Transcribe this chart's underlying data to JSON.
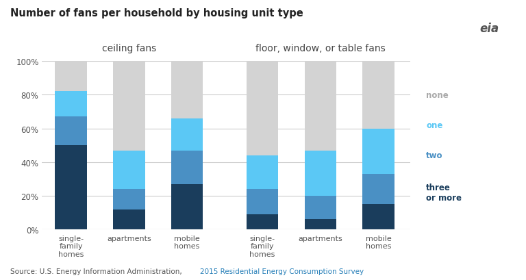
{
  "title": "Number of fans per household by housing unit type",
  "source_text": "Source: U.S. Energy Information Administration, ",
  "source_link": "2015 Residential Energy Consumption Survey",
  "group_labels": [
    "ceiling fans",
    "floor, window, or table fans"
  ],
  "categories_left": [
    "single-\nfamily\nhomes",
    "apartments",
    "mobile\nhomes"
  ],
  "categories_right": [
    "single-\nfamily\nhomes",
    "apartments",
    "mobile\nhomes"
  ],
  "legend_labels": [
    "none",
    "one",
    "two",
    "three\nor more"
  ],
  "colors": [
    "#d3d3d3",
    "#5bc8f5",
    "#4a90c4",
    "#1a3d5c"
  ],
  "data": {
    "three_or_more": [
      50,
      12,
      27,
      9,
      6,
      15
    ],
    "two": [
      17,
      12,
      20,
      15,
      14,
      18
    ],
    "one": [
      15,
      23,
      19,
      20,
      27,
      27
    ],
    "none": [
      18,
      53,
      34,
      56,
      53,
      40
    ]
  },
  "ylim": [
    0,
    100
  ],
  "yticks": [
    0,
    20,
    40,
    60,
    80,
    100
  ],
  "ytick_labels": [
    "0%",
    "20%",
    "40%",
    "60%",
    "80%",
    "100%"
  ],
  "bar_width": 0.55,
  "background_color": "#ffffff",
  "grid_color": "#cccccc",
  "legend_text_color_none": "#aaaaaa",
  "legend_text_color_one": "#5bc8f5",
  "legend_text_color_two": "#4a90c4",
  "legend_text_color_three": "#1a3d5c"
}
